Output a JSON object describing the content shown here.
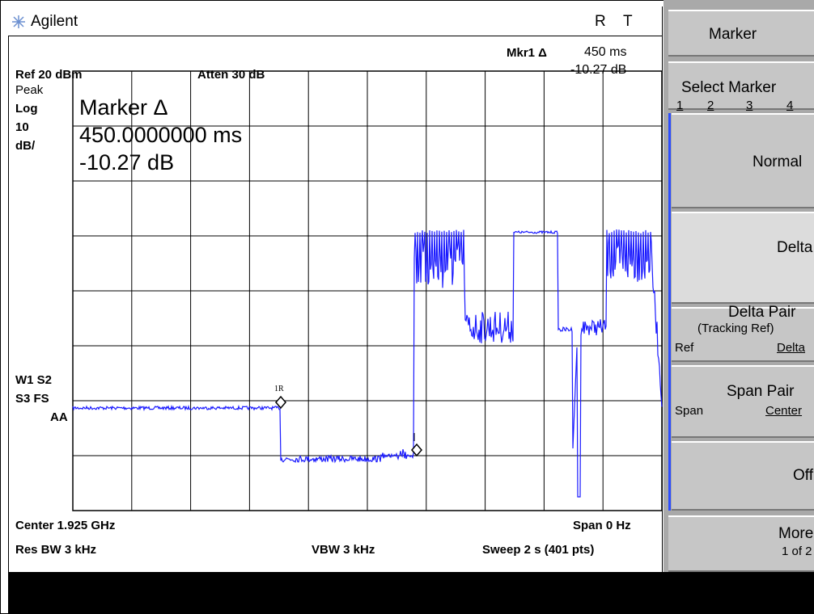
{
  "header": {
    "brand": "Agilent",
    "indicators": [
      "R",
      "T"
    ]
  },
  "marker_readout": {
    "label": "Mkr1 Δ",
    "time": "450 ms",
    "level": "-10.27 dB"
  },
  "settings": {
    "ref": "Ref 20 dBm",
    "atten": "Atten 30 dB",
    "detector": "Peak",
    "scale_type": "Log",
    "scale_value": "10",
    "scale_unit": "dB/",
    "trace_flags": [
      "W1 S2",
      "S3 FS",
      "AA"
    ]
  },
  "annotation": {
    "title": "Marker Δ",
    "time": "450.0000000 ms",
    "level": "-10.27 dB"
  },
  "trace_markers": [
    "1R"
  ],
  "footer": {
    "center": "Center 1.925 GHz",
    "span": "Span 0 Hz",
    "rbw": "Res BW 3 kHz",
    "vbw": "VBW 3 kHz",
    "sweep": "Sweep 2 s (401 pts)"
  },
  "softkeys": {
    "title": "Marker",
    "select": {
      "label": "Select Marker",
      "options": [
        "1",
        "2",
        "3",
        "4"
      ]
    },
    "buttons": [
      {
        "label": "Normal"
      },
      {
        "label": "Delta"
      },
      {
        "label": "Delta Pair",
        "sublabel": "(Tracking Ref)",
        "options": [
          "Ref",
          "Delta"
        ]
      },
      {
        "label": "Span Pair",
        "options": [
          "Span",
          "Center"
        ]
      },
      {
        "label": "Off"
      },
      {
        "label": "More",
        "sublabel": "1 of 2"
      }
    ]
  }
}
